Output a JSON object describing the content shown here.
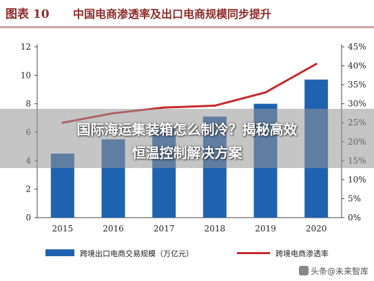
{
  "figure": {
    "label": "图表 10",
    "title": "中国电商渗透率及出口电商规模同步提升"
  },
  "chart_data": {
    "type": "bar",
    "categories": [
      "2015",
      "2016",
      "2017",
      "2018",
      "2019",
      "2020"
    ],
    "series": [
      {
        "name": "跨境出口电商交易规模（万亿元）",
        "type": "bar",
        "axis": "left",
        "values": [
          4.5,
          5.5,
          6.3,
          7.1,
          8.0,
          9.7
        ],
        "color": "#1f63b0"
      },
      {
        "name": "跨境电商渗透率",
        "type": "line",
        "axis": "right",
        "values": [
          25,
          27.5,
          29,
          29.5,
          33,
          40.5
        ],
        "color": "#c5292b"
      }
    ],
    "y_left": {
      "min": 0,
      "max": 12,
      "ticks": [
        0,
        2,
        4,
        6,
        8,
        10,
        12
      ]
    },
    "y_right": {
      "min": 0,
      "max": 45,
      "ticks": [
        0,
        5,
        10,
        15,
        20,
        25,
        30,
        35,
        40,
        45
      ],
      "tick_labels": [
        "0%",
        "5%",
        "10%",
        "15%",
        "20%",
        "25%",
        "30%",
        "35%",
        "40%",
        "45%"
      ]
    },
    "grid": false,
    "legend_position": "bottom"
  },
  "overlay": {
    "line1": "国际海运集装箱怎么制冷？揭秘高效",
    "line2": "恒温控制解决方案"
  },
  "watermark": {
    "text": "头条@未来智库",
    "icon": "app-logo-icon"
  }
}
